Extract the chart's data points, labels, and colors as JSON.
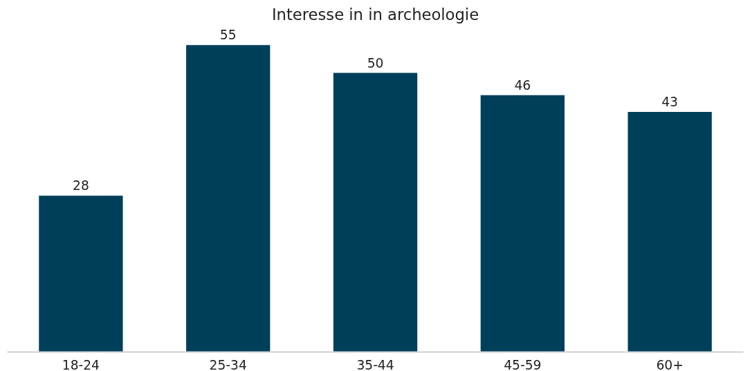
{
  "chart_data": {
    "type": "bar",
    "title": "Interesse in in archeologie",
    "categories": [
      "18-24",
      "25-34",
      "35-44",
      "45-59",
      "60+"
    ],
    "values": [
      28,
      55,
      50,
      46,
      43
    ],
    "color": "#003f5a",
    "data_labels": true,
    "grid": false
  }
}
